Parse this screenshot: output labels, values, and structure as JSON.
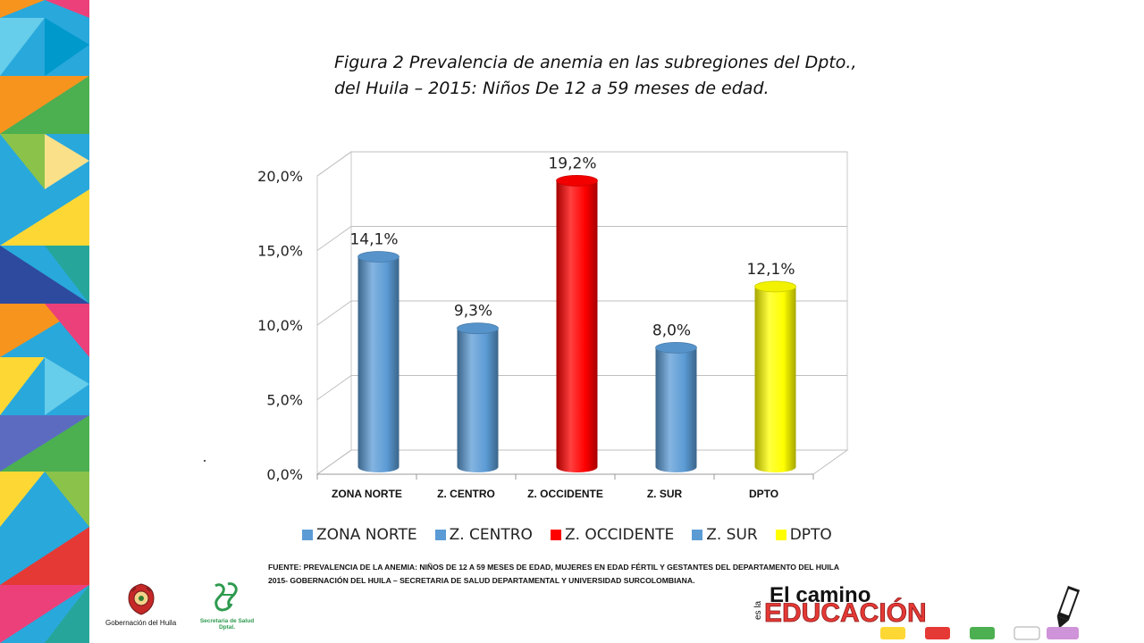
{
  "title": {
    "line1": "Figura 2 Prevalencia de anemia en las subregiones del Dpto.,",
    "line2": "del Huila – 2015: Niños De 12 a 59 meses  de edad."
  },
  "chart_data": {
    "type": "bar",
    "title": "Prevalencia de anemia en las subregiones del Dpto., del Huila – 2015: Niños De 12 a 59 meses de edad",
    "categories": [
      "ZONA NORTE",
      "Z. CENTRO",
      "Z. OCCIDENTE",
      "Z. SUR",
      "DPTO"
    ],
    "values": [
      14.1,
      9.3,
      19.2,
      8.0,
      12.1
    ],
    "value_labels": [
      "14,1%",
      "9,3%",
      "19,2%",
      "8,0%",
      "12,1%"
    ],
    "colors": [
      "#5b9bd5",
      "#5b9bd5",
      "#ff0000",
      "#5b9bd5",
      "#ffff00"
    ],
    "y_ticks": [
      0,
      5,
      10,
      15,
      20
    ],
    "y_tick_labels": [
      "0,0%",
      "5,0%",
      "10,0%",
      "15,0%",
      "20,0%"
    ],
    "ylim": [
      0,
      20
    ],
    "xlabel": "",
    "ylabel": "",
    "grid": true,
    "legend_position": "bottom"
  },
  "legend": {
    "items": [
      {
        "label": "ZONA NORTE",
        "color": "#5b9bd5"
      },
      {
        "label": "Z. CENTRO",
        "color": "#5b9bd5"
      },
      {
        "label": "Z. OCCIDENTE",
        "color": "#ff0000"
      },
      {
        "label": "Z. SUR",
        "color": "#5b9bd5"
      },
      {
        "label": "DPTO",
        "color": "#ffff00"
      }
    ]
  },
  "source": {
    "line1": "FUENTE: PREVALENCIA  DE LA ANEMIA: NIÑOS DE 12 A 59 MESES DE EDAD, MUJERES EN EDAD FÉRTIL Y GESTANTES DEL DEPARTAMENTO DEL HUILA",
    "line2": "2015- GOBERNACIÓN DEL HUILA – SECRETARIA DE SALUD DEPARTAMENTAL Y UNIVERSIDAD SURCOLOMBIANA."
  },
  "footer": {
    "gobernacion_label": "Gobernación del Huila",
    "secretaria_label_1": "Secretaria de Salud",
    "secretaria_label_2": "Dptal.",
    "banner_text": "El camino es la EDUCACIÓN"
  },
  "colors": {
    "bar_blue": "#5b9bd5",
    "bar_red": "#ff0000",
    "bar_yellow": "#ffff00",
    "grid": "#bfbfbf"
  }
}
